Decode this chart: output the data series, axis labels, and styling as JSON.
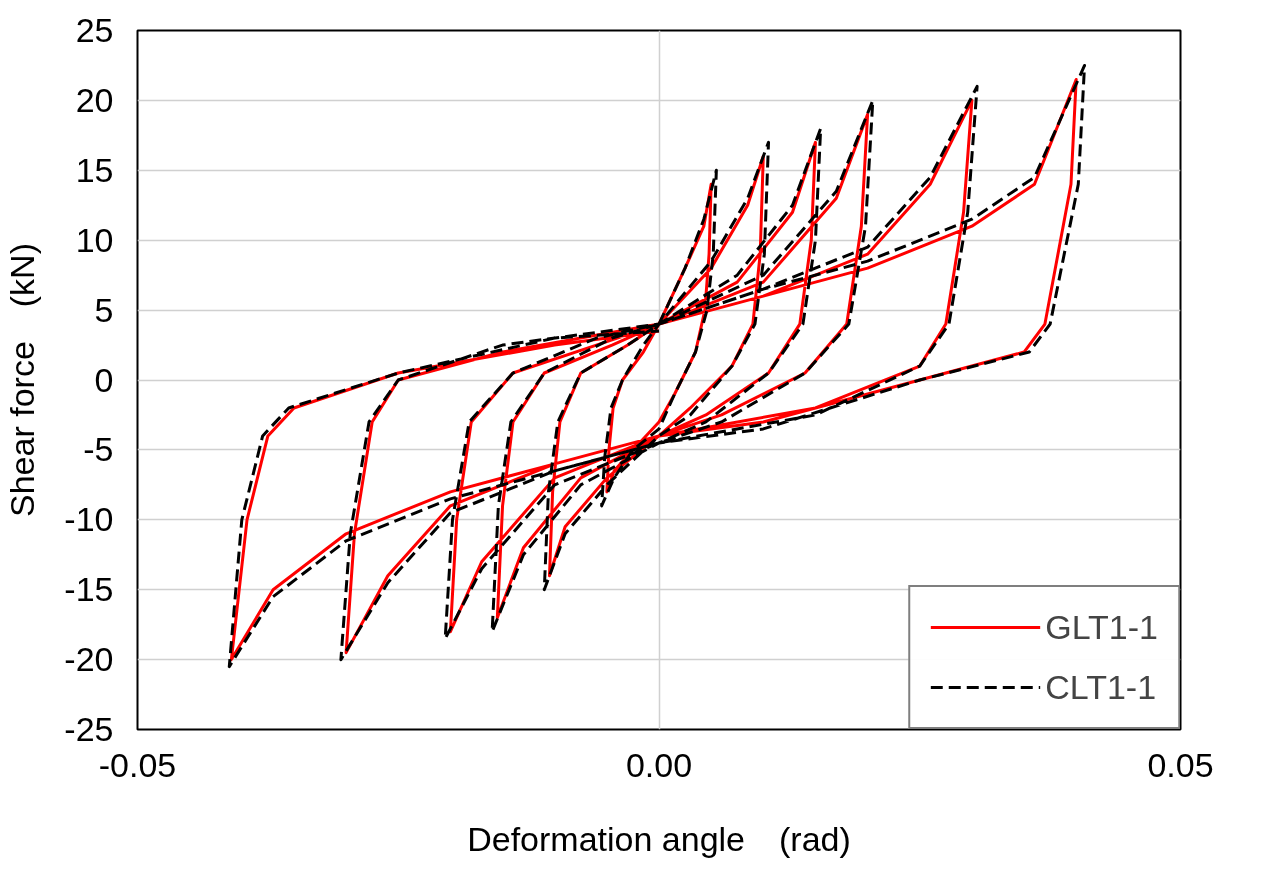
{
  "chart_data": {
    "type": "line",
    "xlabel": "Deformation angle　(rad)",
    "ylabel": "Shear force　(kN)",
    "xlim": [
      -0.05,
      0.05
    ],
    "ylim": [
      -25,
      25
    ],
    "xticks": [
      {
        "value": -0.05,
        "label": "-0.05"
      },
      {
        "value": 0,
        "label": "0.00"
      },
      {
        "value": 0.05,
        "label": "0.05"
      }
    ],
    "yticks": [
      -25,
      -20,
      -15,
      -10,
      -5,
      0,
      5,
      10,
      15,
      20,
      25
    ],
    "grid": true,
    "legend": "bottom right",
    "marker": "none",
    "series": [
      {
        "name": "GLT1-1",
        "color": "#ff0000",
        "line_style": "solid",
        "x": [
          0,
          0.0025,
          0.0043,
          0.005,
          0.0048,
          0.0044,
          0.0035,
          0.0015,
          0,
          -0.0025,
          -0.0043,
          -0.005,
          -0.0048,
          -0.0044,
          -0.0035,
          -0.0015,
          0,
          0.005,
          0.0085,
          0.01,
          0.0097,
          0.009,
          0.007,
          0.003,
          0,
          -0.005,
          -0.009,
          -0.0105,
          -0.0102,
          -0.0095,
          -0.0075,
          -0.003,
          0,
          0.0075,
          0.0128,
          0.015,
          0.0146,
          0.0135,
          0.0105,
          0.0045,
          0,
          -0.0075,
          -0.013,
          -0.0155,
          -0.015,
          -0.014,
          -0.011,
          -0.0045,
          0,
          0.01,
          0.017,
          0.02,
          0.0194,
          0.018,
          0.014,
          0.006,
          0,
          -0.01,
          -0.017,
          -0.02,
          -0.0194,
          -0.018,
          -0.014,
          -0.006,
          0,
          0.01,
          0.02,
          0.026,
          0.03,
          0.0292,
          0.0275,
          0.025,
          0.015,
          0,
          -0.01,
          -0.02,
          -0.026,
          -0.03,
          -0.0292,
          -0.0275,
          -0.025,
          -0.015,
          0,
          0.01,
          0.02,
          0.03,
          0.036,
          0.04,
          0.0395,
          0.037,
          0.035,
          0.025,
          0.01,
          0,
          -0.01,
          -0.02,
          -0.03,
          -0.037,
          -0.041,
          -0.0395,
          -0.0375,
          -0.035,
          -0.025,
          -0.01,
          0
        ],
        "values": [
          4,
          8,
          11,
          14,
          9,
          5,
          2,
          -1,
          -3,
          -5,
          -6.5,
          -8,
          -5,
          -2,
          0,
          2,
          4,
          8,
          12.5,
          16,
          9,
          4,
          1,
          -2,
          -4,
          -7,
          -10.5,
          -14,
          -8,
          -3,
          0.5,
          2.5,
          4,
          7,
          12,
          17,
          10,
          4,
          0.5,
          -2.5,
          -4,
          -7,
          -12,
          -17,
          -9,
          -3,
          0.5,
          2.5,
          4,
          7,
          13,
          19,
          11,
          4,
          0.5,
          -2.5,
          -4,
          -7,
          -13,
          -18,
          -10,
          -3,
          0.5,
          2.5,
          4,
          6,
          9,
          14,
          20,
          12,
          4,
          1,
          -2,
          -4,
          -6,
          -9,
          -14,
          -19.5,
          -11,
          -3,
          0,
          2,
          4,
          6,
          8,
          11,
          14,
          21.5,
          14,
          4,
          2,
          0,
          -3,
          -4,
          -6,
          -8,
          -11,
          -15,
          -20,
          -10,
          -4,
          -2,
          0.5,
          2.5,
          3.5
        ]
      },
      {
        "name": "CLT1-1",
        "color": "#000000",
        "line_style": "dashed",
        "x": [
          0,
          0.0025,
          0.0043,
          0.0055,
          0.0052,
          0.0046,
          0.0035,
          0.0015,
          0,
          -0.0025,
          -0.0043,
          -0.0055,
          -0.0052,
          -0.0046,
          -0.0035,
          -0.0015,
          0,
          0.005,
          0.0085,
          0.0105,
          0.0101,
          0.0092,
          0.007,
          0.003,
          0,
          -0.005,
          -0.009,
          -0.011,
          -0.0106,
          -0.0097,
          -0.0075,
          -0.003,
          0,
          0.0075,
          0.0128,
          0.0155,
          0.015,
          0.0138,
          0.0105,
          0.0045,
          0,
          -0.0075,
          -0.013,
          -0.016,
          -0.0154,
          -0.0142,
          -0.011,
          -0.0045,
          0,
          0.01,
          0.017,
          0.0205,
          0.0198,
          0.0182,
          0.014,
          0.006,
          0,
          -0.01,
          -0.017,
          -0.0205,
          -0.0198,
          -0.0182,
          -0.014,
          -0.006,
          0,
          0.01,
          0.02,
          0.026,
          0.0305,
          0.0296,
          0.0278,
          0.025,
          0.015,
          0,
          -0.01,
          -0.02,
          -0.026,
          -0.0305,
          -0.0296,
          -0.0278,
          -0.025,
          -0.015,
          0,
          0.01,
          0.02,
          0.03,
          0.036,
          0.0408,
          0.0402,
          0.0375,
          0.0355,
          0.025,
          0.01,
          0,
          -0.01,
          -0.02,
          -0.03,
          -0.037,
          -0.0412,
          -0.04,
          -0.038,
          -0.0355,
          -0.025,
          -0.01,
          0
        ],
        "values": [
          4,
          8,
          11.5,
          15,
          9,
          5,
          2,
          -1,
          -3.5,
          -5,
          -7,
          -9,
          -5.5,
          -2,
          0,
          2.5,
          4,
          8.5,
          13,
          17,
          9,
          4,
          1,
          -2.5,
          -4,
          -7.5,
          -11,
          -15,
          -8,
          -3,
          0.5,
          2.5,
          4,
          7.5,
          12.5,
          18,
          10,
          4,
          0.5,
          -3,
          -4.5,
          -7.5,
          -12.5,
          -18,
          -9,
          -3,
          0.5,
          3,
          4,
          7.5,
          13.5,
          20,
          11,
          4,
          0.5,
          -3,
          -4.5,
          -7.5,
          -13.5,
          -18.5,
          -10,
          -3,
          0.5,
          3,
          4,
          6.5,
          9.5,
          14.5,
          21,
          12,
          4,
          1,
          -2.5,
          -4.5,
          -6.5,
          -9.5,
          -14.5,
          -20,
          -11,
          -3,
          0,
          2.5,
          4,
          6.5,
          8.5,
          11.5,
          14.5,
          22.5,
          14,
          4,
          2,
          0,
          -3.5,
          -4.5,
          -6.5,
          -8.5,
          -11.5,
          -15.5,
          -20.5,
          -10,
          -4,
          -2,
          0.5,
          3,
          3.5
        ]
      }
    ]
  }
}
